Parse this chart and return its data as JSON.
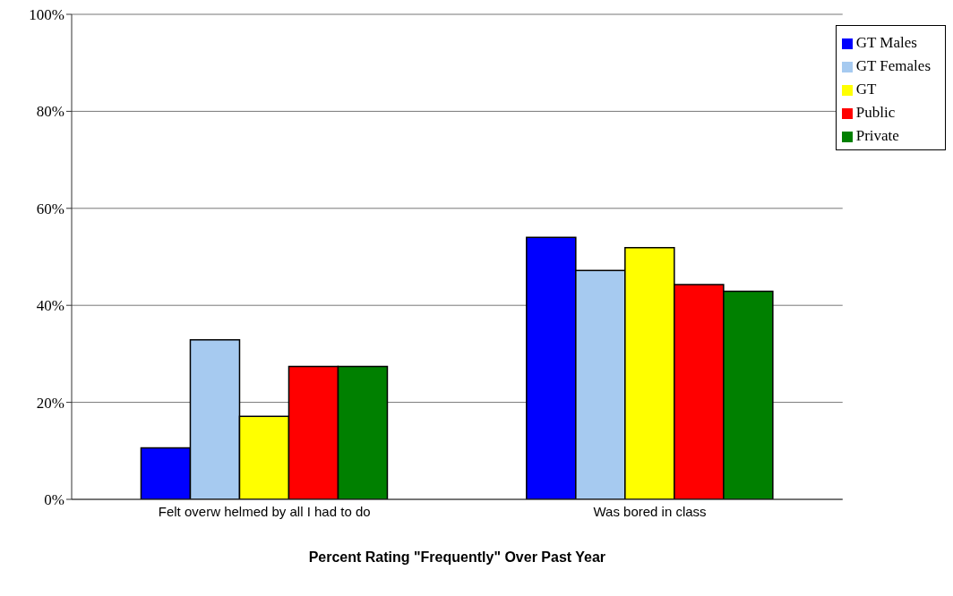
{
  "chart_data": {
    "type": "bar",
    "xlabel": "Percent Rating \"Frequently\" Over Past Year",
    "categories": [
      "Felt overw helmed by all I had to do",
      "Was bored in class"
    ],
    "series": [
      {
        "name": "GT Males",
        "color": "#0000ff",
        "values": [
          10.6,
          54.0
        ]
      },
      {
        "name": "GT Females",
        "color": "#a6caf0",
        "values": [
          32.9,
          47.2
        ]
      },
      {
        "name": "GT",
        "color": "#ffff00",
        "values": [
          17.1,
          51.9
        ]
      },
      {
        "name": "Public",
        "color": "#ff0000",
        "values": [
          27.4,
          44.3
        ]
      },
      {
        "name": "Private",
        "color": "#008000",
        "values": [
          27.4,
          42.9
        ]
      }
    ],
    "ylim": [
      0,
      100
    ],
    "yticks": [
      {
        "value": 0,
        "label": "0%"
      },
      {
        "value": 20,
        "label": "20%"
      },
      {
        "value": 40,
        "label": "40%"
      },
      {
        "value": 60,
        "label": "60%"
      },
      {
        "value": 80,
        "label": "80%"
      },
      {
        "value": 100,
        "label": "100%"
      }
    ],
    "grid": "y",
    "legend": "top right"
  }
}
